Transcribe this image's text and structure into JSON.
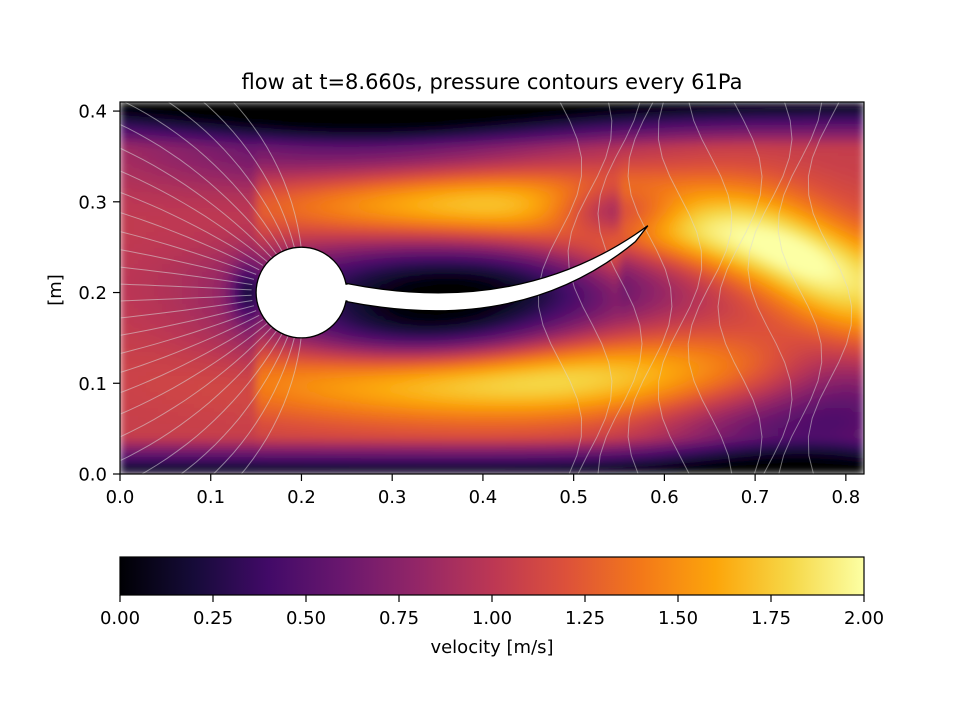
{
  "chart_data": {
    "type": "heatmap",
    "title": "flow at t=8.660s, pressure contours every 61Pa",
    "xlabel": "",
    "ylabel": "[m]",
    "xlim": [
      0.0,
      0.82
    ],
    "ylim": [
      0.0,
      0.41
    ],
    "x_ticks": [
      {
        "value": 0.0,
        "label": "0.0"
      },
      {
        "value": 0.1,
        "label": "0.1"
      },
      {
        "value": 0.2,
        "label": "0.2"
      },
      {
        "value": 0.3,
        "label": "0.3"
      },
      {
        "value": 0.4,
        "label": "0.4"
      },
      {
        "value": 0.5,
        "label": "0.5"
      },
      {
        "value": 0.6,
        "label": "0.6"
      },
      {
        "value": 0.7,
        "label": "0.7"
      },
      {
        "value": 0.8,
        "label": "0.8"
      }
    ],
    "y_ticks": [
      {
        "value": 0.0,
        "label": "0.0"
      },
      {
        "value": 0.1,
        "label": "0.1"
      },
      {
        "value": 0.2,
        "label": "0.2"
      },
      {
        "value": 0.3,
        "label": "0.3"
      },
      {
        "value": 0.4,
        "label": "0.4"
      }
    ],
    "field": "velocity magnitude",
    "colormap": "inferno",
    "contours": "pressure, every 61 Pa",
    "contour_color": "#d9d9d9",
    "grid": false,
    "cylinder": {
      "center": [
        0.2,
        0.2
      ],
      "radius": 0.05
    },
    "flag": {
      "attached_at": [
        0.25,
        0.2
      ],
      "tip": [
        0.575,
        0.265
      ],
      "thickness": 0.02
    },
    "colorbar": {
      "label": "velocity [m/s]",
      "orientation": "horizontal",
      "range": [
        0.0,
        2.0
      ],
      "ticks": [
        {
          "value": 0.0,
          "label": "0.00"
        },
        {
          "value": 0.25,
          "label": "0.25"
        },
        {
          "value": 0.5,
          "label": "0.50"
        },
        {
          "value": 0.75,
          "label": "0.75"
        },
        {
          "value": 1.0,
          "label": "1.00"
        },
        {
          "value": 1.25,
          "label": "1.25"
        },
        {
          "value": 1.5,
          "label": "1.50"
        },
        {
          "value": 1.75,
          "label": "1.75"
        },
        {
          "value": 2.0,
          "label": "2.00"
        }
      ]
    }
  }
}
